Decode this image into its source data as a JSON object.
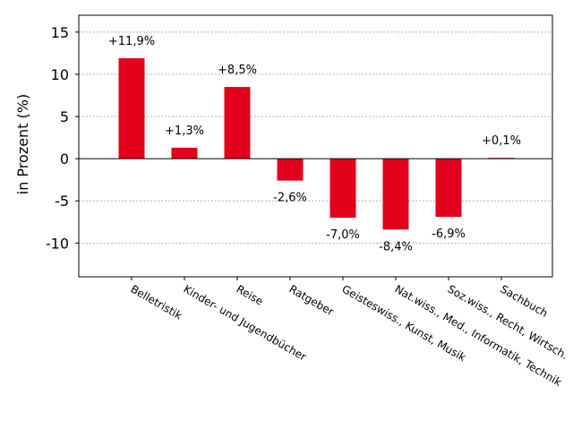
{
  "chart_data": {
    "type": "bar",
    "title": "",
    "xlabel": "",
    "ylabel": "in Prozent (%)",
    "ylim": [
      -14,
      17
    ],
    "yticks": [
      15,
      10,
      5,
      0,
      -5,
      -10
    ],
    "ytick_labels": [
      "15",
      "10",
      "5",
      "0",
      "-5",
      "-10"
    ],
    "grid": true,
    "bar_color": "#e2001a",
    "categories": [
      "Belletristik",
      "Kinder- und Jugendbücher",
      "Reise",
      "Ratgeber",
      "Geisteswiss., Kunst, Musik",
      "Nat.wiss., Med., Informatik, Technik",
      "Soz.wiss., Recht, Wirtsch.",
      "Sachbuch"
    ],
    "values": [
      11.9,
      1.3,
      8.5,
      -2.6,
      -7.0,
      -8.4,
      -6.9,
      0.1
    ],
    "data_labels": [
      "+11,9%",
      "+1,3%",
      "+8,5%",
      "-2,6%",
      "-7,0%",
      "-8,4%",
      "-6,9%",
      "+0,1%"
    ]
  }
}
